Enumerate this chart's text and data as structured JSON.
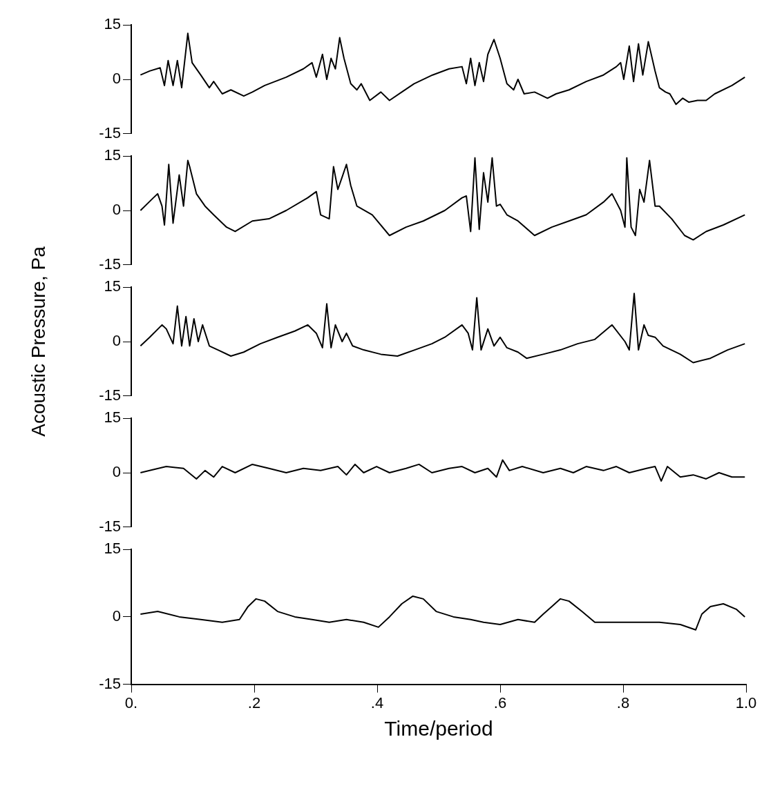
{
  "chart_data": [
    {
      "type": "line",
      "tick_labels": "y",
      "color": "#000000",
      "marker": "none",
      "line_style": "solid",
      "grid": false,
      "xlim": [
        0,
        1
      ],
      "ylim": [
        -15,
        15
      ],
      "yticks": [
        -15,
        0,
        15
      ],
      "x": [
        0.015,
        0.03,
        0.047,
        0.054,
        0.06,
        0.068,
        0.075,
        0.082,
        0.092,
        0.099,
        0.113,
        0.127,
        0.134,
        0.148,
        0.162,
        0.183,
        0.197,
        0.217,
        0.252,
        0.28,
        0.294,
        0.301,
        0.311,
        0.318,
        0.325,
        0.332,
        0.339,
        0.346,
        0.357,
        0.367,
        0.374,
        0.388,
        0.406,
        0.42,
        0.44,
        0.46,
        0.49,
        0.517,
        0.538,
        0.545,
        0.552,
        0.559,
        0.566,
        0.573,
        0.58,
        0.59,
        0.6,
        0.611,
        0.622,
        0.629,
        0.639,
        0.656,
        0.677,
        0.691,
        0.712,
        0.74,
        0.768,
        0.789,
        0.796,
        0.801,
        0.81,
        0.817,
        0.825,
        0.832,
        0.841,
        0.852,
        0.859,
        0.869,
        0.876,
        0.886,
        0.897,
        0.907,
        0.921,
        0.935,
        0.949,
        0.977,
        0.998
      ],
      "values": [
        1.2,
        2.3,
        3.2,
        -1.7,
        5.2,
        -1.7,
        5.2,
        -2.3,
        12.7,
        4.6,
        1.2,
        -2.3,
        -0.6,
        -4.0,
        -2.9,
        -4.6,
        -3.5,
        -1.7,
        0.6,
        2.9,
        4.6,
        0.6,
        6.9,
        0,
        5.8,
        2.9,
        11.5,
        5.8,
        -1.2,
        -2.9,
        -1.2,
        -5.8,
        -3.5,
        -5.8,
        -3.5,
        -1.2,
        1.2,
        2.9,
        3.5,
        -1.2,
        5.8,
        -1.7,
        4.6,
        -0.6,
        6.9,
        11.0,
        5.8,
        -1.2,
        -2.9,
        0,
        -4.0,
        -3.5,
        -5.2,
        -4.0,
        -2.9,
        -0.6,
        1.2,
        3.5,
        4.6,
        0,
        9.2,
        -0.6,
        9.8,
        1.2,
        10.4,
        2.3,
        -2.3,
        -3.5,
        -4.0,
        -6.9,
        -5.2,
        -6.3,
        -5.8,
        -5.8,
        -4.0,
        -1.7,
        0.6
      ]
    },
    {
      "type": "line",
      "tick_labels": "y",
      "color": "#000000",
      "marker": "none",
      "line_style": "solid",
      "grid": false,
      "xlim": [
        0,
        1
      ],
      "ylim": [
        -15,
        15
      ],
      "yticks": [
        -15,
        0,
        15
      ],
      "x": [
        0.015,
        0.036,
        0.043,
        0.05,
        0.054,
        0.061,
        0.068,
        0.078,
        0.085,
        0.092,
        0.095,
        0.106,
        0.12,
        0.134,
        0.155,
        0.169,
        0.197,
        0.224,
        0.252,
        0.287,
        0.301,
        0.308,
        0.322,
        0.329,
        0.336,
        0.343,
        0.35,
        0.357,
        0.367,
        0.392,
        0.42,
        0.447,
        0.475,
        0.51,
        0.538,
        0.545,
        0.552,
        0.559,
        0.566,
        0.573,
        0.58,
        0.587,
        0.594,
        0.6,
        0.611,
        0.629,
        0.656,
        0.684,
        0.712,
        0.74,
        0.768,
        0.782,
        0.796,
        0.803,
        0.806,
        0.813,
        0.82,
        0.827,
        0.834,
        0.843,
        0.852,
        0.859,
        0.879,
        0.9,
        0.914,
        0.935,
        0.963,
        0.998
      ],
      "values": [
        0,
        3.5,
        4.6,
        1.2,
        -4.0,
        12.7,
        -3.5,
        9.8,
        1.2,
        13.8,
        12.1,
        4.6,
        1.2,
        -1.2,
        -4.6,
        -5.8,
        -2.9,
        -2.3,
        0,
        3.5,
        5.2,
        -1.2,
        -2.3,
        12.1,
        5.8,
        9.2,
        12.7,
        6.9,
        1.2,
        -1.2,
        -6.9,
        -4.6,
        -2.9,
        0,
        3.5,
        4.0,
        -5.8,
        14.5,
        -5.2,
        10.4,
        2.3,
        14.5,
        1.2,
        1.7,
        -1.2,
        -2.9,
        -6.9,
        -4.6,
        -2.9,
        -1.2,
        2.3,
        4.6,
        0,
        -4.6,
        14.5,
        -4.6,
        -6.9,
        5.8,
        2.3,
        13.8,
        1.2,
        1.2,
        -2.3,
        -6.9,
        -8.1,
        -5.8,
        -4.0,
        -1.2
      ]
    },
    {
      "type": "line",
      "tick_labels": "y",
      "color": "#000000",
      "marker": "none",
      "line_style": "solid",
      "grid": false,
      "xlim": [
        0,
        1
      ],
      "ylim": [
        -15,
        15
      ],
      "yticks": [
        -15,
        0,
        15
      ],
      "ylabel": "Acoustic Pressure, Pa",
      "x": [
        0.015,
        0.03,
        0.05,
        0.057,
        0.068,
        0.075,
        0.082,
        0.089,
        0.095,
        0.102,
        0.109,
        0.116,
        0.127,
        0.141,
        0.162,
        0.183,
        0.21,
        0.238,
        0.266,
        0.287,
        0.301,
        0.311,
        0.318,
        0.325,
        0.332,
        0.343,
        0.35,
        0.36,
        0.378,
        0.406,
        0.433,
        0.461,
        0.489,
        0.51,
        0.538,
        0.548,
        0.555,
        0.562,
        0.569,
        0.58,
        0.59,
        0.6,
        0.611,
        0.629,
        0.643,
        0.67,
        0.698,
        0.726,
        0.754,
        0.782,
        0.803,
        0.81,
        0.818,
        0.825,
        0.834,
        0.841,
        0.852,
        0.865,
        0.893,
        0.914,
        0.942,
        0.97,
        0.998
      ],
      "values": [
        -1.2,
        1.2,
        4.6,
        3.5,
        -0.6,
        9.8,
        -1.2,
        6.9,
        -1.2,
        6.3,
        0,
        4.6,
        -1.2,
        -2.3,
        -4.0,
        -2.9,
        -0.6,
        1.2,
        2.9,
        4.6,
        2.3,
        -1.7,
        10.4,
        -1.7,
        4.6,
        0,
        2.3,
        -1.2,
        -2.3,
        -3.5,
        -4.0,
        -2.3,
        -0.6,
        1.2,
        4.6,
        2.3,
        -2.3,
        12.1,
        -2.3,
        3.5,
        -1.2,
        1.2,
        -1.7,
        -2.9,
        -4.6,
        -3.5,
        -2.3,
        -0.6,
        0.6,
        4.6,
        0,
        -2.3,
        13.3,
        -2.3,
        4.6,
        1.7,
        1.2,
        -1.2,
        -3.5,
        -5.8,
        -4.6,
        -2.3,
        -0.6
      ]
    },
    {
      "type": "line",
      "tick_labels": "y",
      "color": "#000000",
      "marker": "none",
      "line_style": "solid",
      "grid": false,
      "xlim": [
        0,
        1
      ],
      "ylim": [
        -15,
        15
      ],
      "yticks": [
        -15,
        0,
        15
      ],
      "x": [
        0.015,
        0.03,
        0.057,
        0.085,
        0.106,
        0.12,
        0.134,
        0.148,
        0.169,
        0.197,
        0.224,
        0.252,
        0.28,
        0.308,
        0.336,
        0.35,
        0.364,
        0.378,
        0.399,
        0.42,
        0.447,
        0.468,
        0.489,
        0.517,
        0.538,
        0.559,
        0.58,
        0.594,
        0.604,
        0.615,
        0.636,
        0.67,
        0.698,
        0.719,
        0.74,
        0.768,
        0.789,
        0.81,
        0.838,
        0.852,
        0.862,
        0.872,
        0.893,
        0.914,
        0.935,
        0.956,
        0.977,
        0.998
      ],
      "values": [
        0,
        0.6,
        1.7,
        1.2,
        -1.7,
        0.6,
        -1.2,
        1.7,
        0,
        2.3,
        1.2,
        0,
        1.2,
        0.6,
        1.7,
        -0.6,
        2.3,
        0,
        1.7,
        0,
        1.2,
        2.3,
        0,
        1.2,
        1.7,
        0,
        1.2,
        -1.2,
        3.5,
        0.6,
        1.7,
        0,
        1.2,
        0,
        1.7,
        0.6,
        1.7,
        0,
        1.2,
        1.7,
        -2.3,
        1.7,
        -1.2,
        -0.6,
        -1.7,
        0,
        -1.2,
        -1.2
      ]
    },
    {
      "type": "line",
      "color": "#000000",
      "marker": "none",
      "line_style": "solid",
      "grid": false,
      "xlabel": "Time/period",
      "xlim": [
        0,
        1
      ],
      "xticks": [
        {
          "value": 0,
          "label": "0."
        },
        {
          "value": 0.2,
          "label": ".2"
        },
        {
          "value": 0.4,
          "label": ".4"
        },
        {
          "value": 0.6,
          "label": ".6"
        },
        {
          "value": 0.8,
          "label": ".8"
        },
        {
          "value": 1,
          "label": "1.0"
        }
      ],
      "ylim": [
        -15,
        15
      ],
      "yticks": [
        -15,
        0,
        15
      ],
      "x": [
        0.015,
        0.043,
        0.078,
        0.113,
        0.148,
        0.176,
        0.19,
        0.203,
        0.217,
        0.238,
        0.266,
        0.294,
        0.322,
        0.35,
        0.378,
        0.402,
        0.42,
        0.44,
        0.458,
        0.475,
        0.496,
        0.524,
        0.552,
        0.573,
        0.6,
        0.629,
        0.656,
        0.67,
        0.684,
        0.698,
        0.712,
        0.733,
        0.754,
        0.789,
        0.824,
        0.859,
        0.893,
        0.918,
        0.928,
        0.942,
        0.963,
        0.984,
        0.998
      ],
      "values": [
        0.6,
        1.2,
        0,
        -0.6,
        -1.2,
        -0.6,
        2.3,
        4.0,
        3.5,
        1.2,
        0,
        -0.6,
        -1.2,
        -0.6,
        -1.2,
        -2.3,
        0,
        2.9,
        4.6,
        4.0,
        1.2,
        0,
        -0.6,
        -1.2,
        -1.7,
        -0.6,
        -1.2,
        0.6,
        2.3,
        4.0,
        3.5,
        1.2,
        -1.2,
        -1.2,
        -1.2,
        -1.2,
        -1.7,
        -2.9,
        0.6,
        2.3,
        2.9,
        1.7,
        0
      ]
    }
  ]
}
